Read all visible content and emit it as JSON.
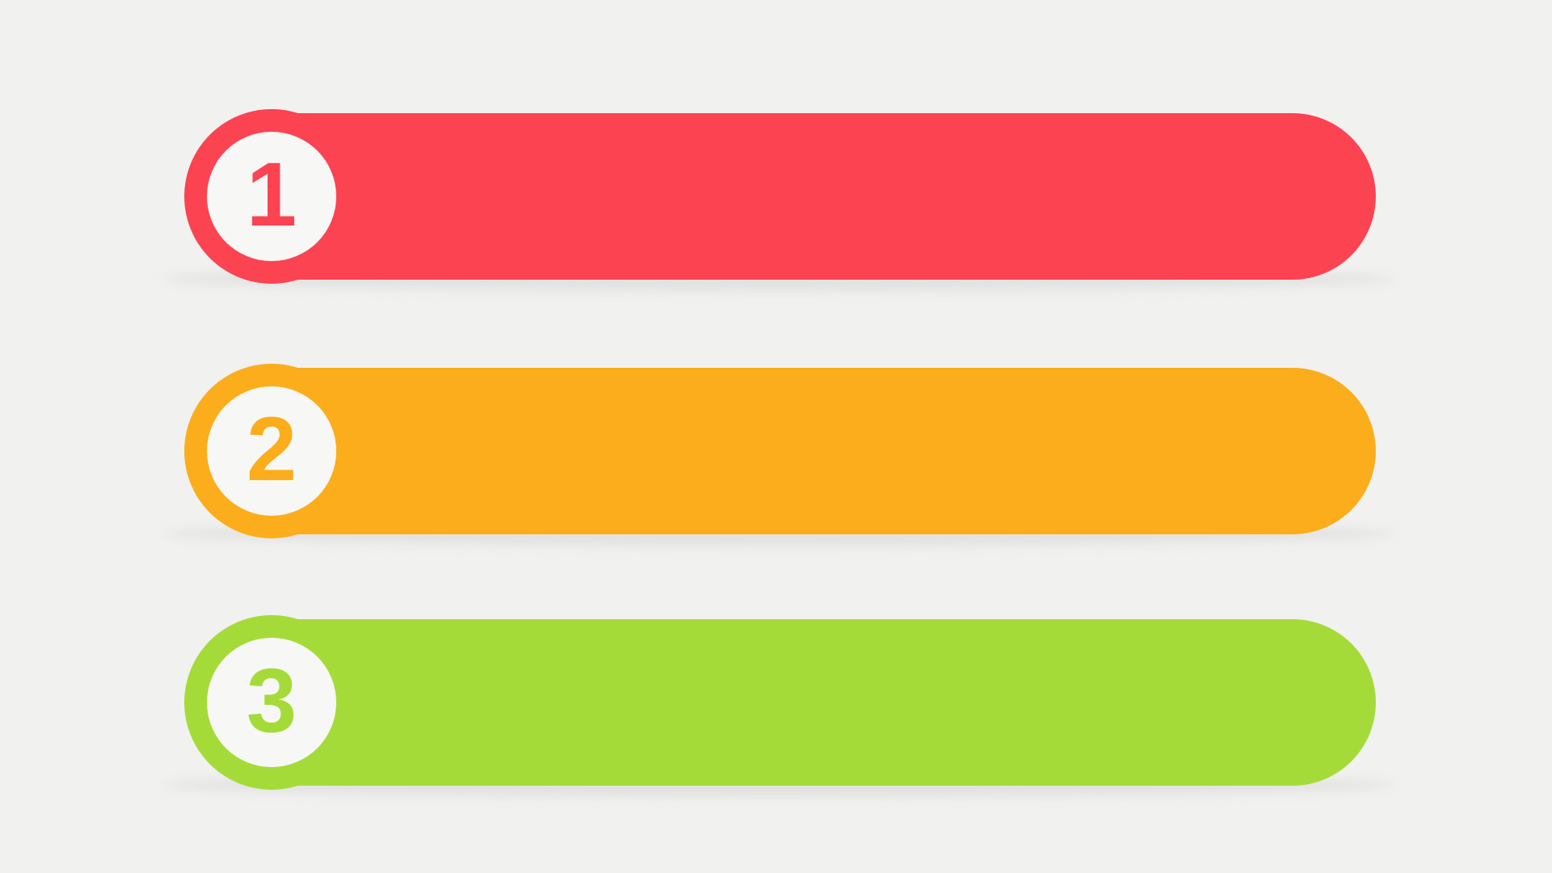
{
  "canvas": {
    "background": "#F1F1F0",
    "shadow_color": "#DCDCDA",
    "badge_fill": "#F7F7F5"
  },
  "list": {
    "items": [
      {
        "number": "1",
        "color": "#FB4351"
      },
      {
        "number": "2",
        "color": "#FBAD1B"
      },
      {
        "number": "3",
        "color": "#A5DB38"
      }
    ]
  }
}
